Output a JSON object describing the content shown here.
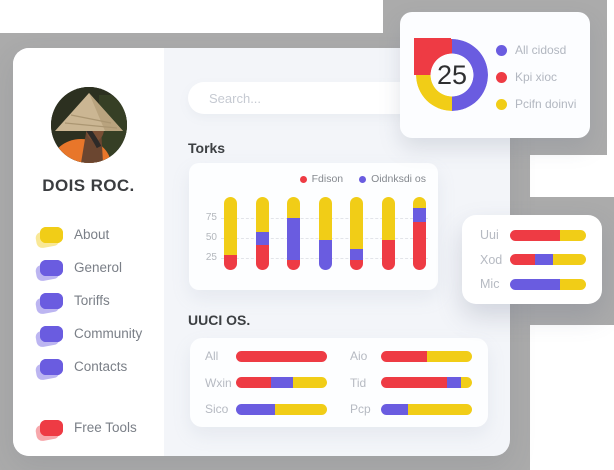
{
  "colors": {
    "red": "#ee3b44",
    "yellow": "#f1cd17",
    "purple": "#6a5ce0",
    "backdrop_gray": "#ababab",
    "panel_bg": "#f3f5f9"
  },
  "sidebar": {
    "profile_name": "DOIS ROC.",
    "menu_items": [
      {
        "label": "About",
        "color": "yellow"
      },
      {
        "label": "Generol",
        "color": "purple"
      },
      {
        "label": "Toriffs",
        "color": "purple"
      },
      {
        "label": "Community",
        "color": "purple"
      },
      {
        "label": "Contacts",
        "color": "purple"
      }
    ],
    "footer_item": {
      "label": "Free Tools",
      "color": "red"
    }
  },
  "search": {
    "placeholder": "Search..."
  },
  "chart_data": [
    {
      "type": "pie",
      "variant": "donut",
      "center_value": "25",
      "legend_position": "right",
      "slices": [
        {
          "label": "All cidosd",
          "color": "purple",
          "pct": 50
        },
        {
          "label": "Kpi xioc",
          "color": "red",
          "pct": 25
        },
        {
          "label": "Pcifn doinvi",
          "color": "yellow",
          "pct": 25
        }
      ],
      "segments_clockwise_from_top": [
        {
          "color": "purple",
          "pct": 50
        },
        {
          "color": "yellow",
          "pct": 25
        },
        {
          "color": "red",
          "pct": 25
        }
      ]
    },
    {
      "type": "bar",
      "variant": "stacked-vertical-rounded",
      "title": "Torks",
      "legend": [
        {
          "label": "Fdison",
          "color": "red"
        },
        {
          "label": "Oidnksdi os",
          "color": "purple"
        }
      ],
      "yticks": [
        75,
        50,
        25
      ],
      "grid": "dashed-horizontal",
      "bars": [
        {
          "segments_bottom_up": [
            {
              "color": "red",
              "pct": 21
            },
            {
              "color": "yellow",
              "pct": 79
            }
          ]
        },
        {
          "segments_bottom_up": [
            {
              "color": "red",
              "pct": 34
            },
            {
              "color": "purple",
              "pct": 18
            },
            {
              "color": "yellow",
              "pct": 48
            }
          ]
        },
        {
          "segments_bottom_up": [
            {
              "color": "red",
              "pct": 14
            },
            {
              "color": "purple",
              "pct": 57
            },
            {
              "color": "yellow",
              "pct": 29
            }
          ]
        },
        {
          "segments_bottom_up": [
            {
              "color": "purple",
              "pct": 41
            },
            {
              "color": "yellow",
              "pct": 59
            }
          ]
        },
        {
          "segments_bottom_up": [
            {
              "color": "red",
              "pct": 14
            },
            {
              "color": "purple",
              "pct": 15
            },
            {
              "color": "yellow",
              "pct": 71
            }
          ]
        },
        {
          "segments_bottom_up": [
            {
              "color": "red",
              "pct": 41
            },
            {
              "color": "yellow",
              "pct": 59
            }
          ]
        },
        {
          "segments_bottom_up": [
            {
              "color": "red",
              "pct": 66
            },
            {
              "color": "purple",
              "pct": 19
            },
            {
              "color": "yellow",
              "pct": 15
            }
          ]
        }
      ]
    },
    {
      "type": "bar",
      "variant": "stacked-horizontal-rounded",
      "title": "UUCI OS.",
      "columns": [
        {
          "rows": [
            {
              "label": "All",
              "segments": [
                {
                  "color": "red",
                  "pct": 100
                }
              ]
            },
            {
              "label": "Wxin",
              "segments": [
                {
                  "color": "red",
                  "pct": 38
                },
                {
                  "color": "purple",
                  "pct": 25
                },
                {
                  "color": "yellow",
                  "pct": 37
                }
              ]
            },
            {
              "label": "Sico",
              "segments": [
                {
                  "color": "purple",
                  "pct": 43
                },
                {
                  "color": "yellow",
                  "pct": 57
                }
              ]
            }
          ]
        },
        {
          "rows": [
            {
              "label": "Aio",
              "segments": [
                {
                  "color": "red",
                  "pct": 50
                },
                {
                  "color": "yellow",
                  "pct": 50
                }
              ]
            },
            {
              "label": "Tid",
              "segments": [
                {
                  "color": "red",
                  "pct": 72
                },
                {
                  "color": "purple",
                  "pct": 16
                },
                {
                  "color": "yellow",
                  "pct": 12
                }
              ]
            },
            {
              "label": "Pcp",
              "segments": [
                {
                  "color": "purple",
                  "pct": 30
                },
                {
                  "color": "yellow",
                  "pct": 70
                }
              ]
            }
          ]
        }
      ]
    },
    {
      "type": "bar",
      "variant": "stacked-horizontal-rounded",
      "title": "",
      "rows": [
        {
          "label": "Uui",
          "segments": [
            {
              "color": "red",
              "pct": 66
            },
            {
              "color": "yellow",
              "pct": 34
            }
          ]
        },
        {
          "label": "Xod",
          "segments": [
            {
              "color": "red",
              "pct": 33
            },
            {
              "color": "purple",
              "pct": 23
            },
            {
              "color": "yellow",
              "pct": 44
            }
          ]
        },
        {
          "label": "Mic",
          "segments": [
            {
              "color": "purple",
              "pct": 66
            },
            {
              "color": "yellow",
              "pct": 34
            }
          ]
        }
      ]
    }
  ]
}
